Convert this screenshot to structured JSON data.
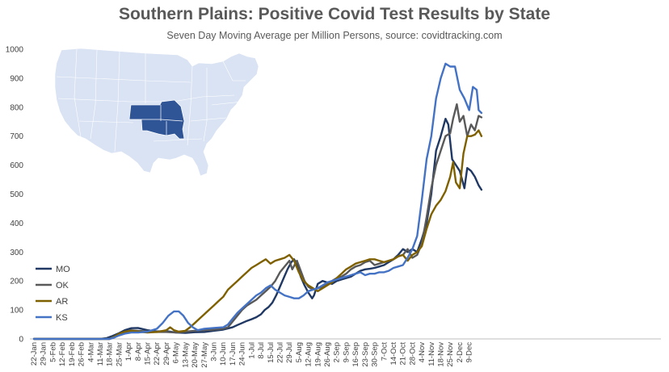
{
  "chart_data": {
    "type": "line",
    "title": "Southern Plains: Positive Covid Test Results by State",
    "subtitle": "Seven Day Moving  Average per Million Persons, source: covidtracking.com",
    "xlabel": "",
    "ylabel": "",
    "ylim": [
      0,
      1000
    ],
    "yticks": [
      0,
      100,
      200,
      300,
      400,
      500,
      600,
      700,
      800,
      900,
      1000
    ],
    "grid": false,
    "legend": "left",
    "x_tick_labels": [
      "22-Jan",
      "29-Jan",
      "5-Feb",
      "12-Feb",
      "19-Feb",
      "26-Feb",
      "4-Mar",
      "11-Mar",
      "18-Mar",
      "25-Mar",
      "1-Apr",
      "8-Apr",
      "15-Apr",
      "22-Apr",
      "29-Apr",
      "6-May",
      "13-May",
      "20-May",
      "27-May",
      "3-Jun",
      "10-Jun",
      "17-Jun",
      "24-Jun",
      "1-Jul",
      "8-Jul",
      "15-Jul",
      "22-Jul",
      "29-Jul",
      "5-Aug",
      "12-Aug",
      "19-Aug",
      "26-Aug",
      "2-Sep",
      "9-Sep",
      "16-Sep",
      "23-Sep",
      "30-Sep",
      "7-Oct",
      "14-Oct",
      "21-Oct",
      "28-Oct",
      "4-Nov",
      "11-Nov",
      "18-Nov",
      "25-Nov",
      "2-Dec",
      "9-Dec"
    ],
    "x_unit": "weeks since 22-Jan",
    "series": [
      {
        "name": "MO",
        "color": "#203864",
        "points": [
          [
            0,
            0
          ],
          [
            7,
            0
          ],
          [
            7.7,
            3
          ],
          [
            8.3,
            10
          ],
          [
            9,
            20
          ],
          [
            9.6,
            30
          ],
          [
            10.3,
            37
          ],
          [
            11,
            38
          ],
          [
            12,
            30
          ],
          [
            13,
            26
          ],
          [
            14,
            27
          ],
          [
            15,
            22
          ],
          [
            16,
            21
          ],
          [
            17,
            23
          ],
          [
            18,
            24
          ],
          [
            19,
            28
          ],
          [
            20,
            32
          ],
          [
            21,
            40
          ],
          [
            21.5,
            48
          ],
          [
            22,
            55
          ],
          [
            22.5,
            62
          ],
          [
            23,
            68
          ],
          [
            23.5,
            75
          ],
          [
            24,
            85
          ],
          [
            24.4,
            100
          ],
          [
            24.8,
            110
          ],
          [
            25.2,
            125
          ],
          [
            25.6,
            150
          ],
          [
            26,
            180
          ],
          [
            26.4,
            210
          ],
          [
            26.8,
            240
          ],
          [
            27.2,
            265
          ],
          [
            27.5,
            275
          ],
          [
            27.8,
            255
          ],
          [
            28.2,
            215
          ],
          [
            28.6,
            185
          ],
          [
            29,
            160
          ],
          [
            29.4,
            140
          ],
          [
            29.6,
            150
          ],
          [
            30,
            190
          ],
          [
            30.5,
            200
          ],
          [
            31,
            195
          ],
          [
            31.5,
            190
          ],
          [
            32,
            200
          ],
          [
            32.5,
            205
          ],
          [
            33,
            210
          ],
          [
            33.5,
            215
          ],
          [
            34,
            225
          ],
          [
            34.5,
            235
          ],
          [
            35,
            240
          ],
          [
            35.5,
            242
          ],
          [
            36,
            245
          ],
          [
            36.5,
            250
          ],
          [
            37,
            255
          ],
          [
            37.5,
            265
          ],
          [
            38,
            275
          ],
          [
            38.5,
            290
          ],
          [
            39,
            310
          ],
          [
            39.5,
            300
          ],
          [
            40,
            310
          ],
          [
            40.5,
            300
          ],
          [
            41,
            345
          ],
          [
            41.5,
            400
          ],
          [
            42,
            500
          ],
          [
            42.5,
            650
          ],
          [
            43,
            700
          ],
          [
            43.5,
            760
          ],
          [
            43.8,
            740
          ],
          [
            44.2,
            620
          ],
          [
            44.6,
            600
          ],
          [
            45,
            580
          ],
          [
            45.5,
            520
          ],
          [
            45.8,
            590
          ],
          [
            46.2,
            580
          ],
          [
            46.6,
            560
          ],
          [
            47,
            530
          ],
          [
            47.3,
            515
          ]
        ]
      },
      {
        "name": "OK",
        "color": "#595959",
        "points": [
          [
            0,
            0
          ],
          [
            8,
            0
          ],
          [
            8.5,
            5
          ],
          [
            9,
            15
          ],
          [
            9.6,
            22
          ],
          [
            10.2,
            30
          ],
          [
            11,
            28
          ],
          [
            12,
            26
          ],
          [
            13,
            24
          ],
          [
            14,
            24
          ],
          [
            15,
            22
          ],
          [
            16,
            25
          ],
          [
            17,
            28
          ],
          [
            18,
            30
          ],
          [
            19,
            32
          ],
          [
            20,
            35
          ],
          [
            20.5,
            40
          ],
          [
            21,
            60
          ],
          [
            21.5,
            80
          ],
          [
            22,
            100
          ],
          [
            22.5,
            115
          ],
          [
            23,
            125
          ],
          [
            23.5,
            135
          ],
          [
            24,
            150
          ],
          [
            24.5,
            165
          ],
          [
            25,
            180
          ],
          [
            25.5,
            200
          ],
          [
            26,
            230
          ],
          [
            26.5,
            250
          ],
          [
            27,
            270
          ],
          [
            27.3,
            240
          ],
          [
            27.8,
            270
          ],
          [
            28.2,
            235
          ],
          [
            28.6,
            200
          ],
          [
            29,
            180
          ],
          [
            29.5,
            170
          ],
          [
            30,
            175
          ],
          [
            30.5,
            180
          ],
          [
            31,
            190
          ],
          [
            31.5,
            200
          ],
          [
            32,
            210
          ],
          [
            32.5,
            215
          ],
          [
            33,
            225
          ],
          [
            33.5,
            240
          ],
          [
            34,
            250
          ],
          [
            34.5,
            255
          ],
          [
            35,
            265
          ],
          [
            35.5,
            270
          ],
          [
            36,
            255
          ],
          [
            36.5,
            260
          ],
          [
            37,
            265
          ],
          [
            37.5,
            270
          ],
          [
            38,
            275
          ],
          [
            38.5,
            285
          ],
          [
            39,
            290
          ],
          [
            39.5,
            310
          ],
          [
            40,
            280
          ],
          [
            40.5,
            290
          ],
          [
            41,
            330
          ],
          [
            41.5,
            420
          ],
          [
            42,
            520
          ],
          [
            42.5,
            600
          ],
          [
            43,
            650
          ],
          [
            43.5,
            700
          ],
          [
            44,
            710
          ],
          [
            44.3,
            760
          ],
          [
            44.7,
            810
          ],
          [
            45,
            750
          ],
          [
            45.4,
            770
          ],
          [
            45.8,
            700
          ],
          [
            46.2,
            740
          ],
          [
            46.6,
            720
          ],
          [
            47,
            770
          ],
          [
            47.3,
            765
          ]
        ]
      },
      {
        "name": "AR",
        "color": "#7F6000",
        "points": [
          [
            0,
            0
          ],
          [
            8,
            0
          ],
          [
            8.5,
            8
          ],
          [
            9,
            18
          ],
          [
            9.6,
            25
          ],
          [
            10.3,
            28
          ],
          [
            11,
            25
          ],
          [
            12,
            22
          ],
          [
            13,
            24
          ],
          [
            14,
            30
          ],
          [
            14.4,
            40
          ],
          [
            14.8,
            30
          ],
          [
            15.3,
            25
          ],
          [
            16,
            28
          ],
          [
            16.5,
            40
          ],
          [
            17,
            55
          ],
          [
            17.5,
            70
          ],
          [
            18,
            85
          ],
          [
            18.5,
            100
          ],
          [
            19,
            115
          ],
          [
            19.5,
            130
          ],
          [
            20,
            145
          ],
          [
            20.5,
            170
          ],
          [
            21,
            185
          ],
          [
            21.5,
            200
          ],
          [
            22,
            215
          ],
          [
            22.5,
            230
          ],
          [
            23,
            245
          ],
          [
            23.5,
            255
          ],
          [
            24,
            265
          ],
          [
            24.5,
            275
          ],
          [
            25,
            260
          ],
          [
            25.5,
            270
          ],
          [
            26,
            275
          ],
          [
            26.5,
            280
          ],
          [
            27,
            290
          ],
          [
            27.5,
            270
          ],
          [
            28,
            230
          ],
          [
            28.5,
            200
          ],
          [
            29,
            185
          ],
          [
            29.5,
            175
          ],
          [
            30,
            165
          ],
          [
            30.5,
            175
          ],
          [
            31,
            185
          ],
          [
            31.5,
            195
          ],
          [
            32,
            210
          ],
          [
            32.5,
            225
          ],
          [
            33,
            240
          ],
          [
            33.5,
            250
          ],
          [
            34,
            260
          ],
          [
            34.5,
            265
          ],
          [
            35,
            270
          ],
          [
            35.5,
            275
          ],
          [
            36,
            275
          ],
          [
            36.5,
            270
          ],
          [
            37,
            265
          ],
          [
            37.5,
            270
          ],
          [
            38,
            275
          ],
          [
            38.5,
            285
          ],
          [
            39,
            290
          ],
          [
            39.5,
            270
          ],
          [
            40,
            290
          ],
          [
            40.5,
            300
          ],
          [
            41,
            320
          ],
          [
            41.5,
            380
          ],
          [
            42,
            430
          ],
          [
            42.5,
            460
          ],
          [
            43,
            480
          ],
          [
            43.5,
            510
          ],
          [
            44,
            560
          ],
          [
            44.3,
            610
          ],
          [
            44.6,
            540
          ],
          [
            45,
            520
          ],
          [
            45.4,
            640
          ],
          [
            45.8,
            700
          ],
          [
            46.2,
            700
          ],
          [
            46.6,
            705
          ],
          [
            47,
            720
          ],
          [
            47.3,
            700
          ]
        ]
      },
      {
        "name": "KS",
        "color": "#4472C4",
        "points": [
          [
            0,
            0
          ],
          [
            8,
            0
          ],
          [
            8.5,
            5
          ],
          [
            9,
            12
          ],
          [
            9.6,
            18
          ],
          [
            10.3,
            22
          ],
          [
            11,
            22
          ],
          [
            12,
            25
          ],
          [
            13,
            35
          ],
          [
            13.6,
            55
          ],
          [
            14.2,
            80
          ],
          [
            14.8,
            95
          ],
          [
            15.3,
            95
          ],
          [
            15.8,
            80
          ],
          [
            16.3,
            55
          ],
          [
            16.8,
            40
          ],
          [
            17.3,
            30
          ],
          [
            18,
            35
          ],
          [
            19,
            38
          ],
          [
            20,
            40
          ],
          [
            20.5,
            50
          ],
          [
            21,
            70
          ],
          [
            21.5,
            90
          ],
          [
            22,
            105
          ],
          [
            22.5,
            120
          ],
          [
            23,
            135
          ],
          [
            23.5,
            150
          ],
          [
            24,
            160
          ],
          [
            24.5,
            175
          ],
          [
            25,
            185
          ],
          [
            25.5,
            170
          ],
          [
            26,
            160
          ],
          [
            26.5,
            150
          ],
          [
            27,
            145
          ],
          [
            27.5,
            140
          ],
          [
            28,
            140
          ],
          [
            28.5,
            150
          ],
          [
            29,
            165
          ],
          [
            29.5,
            170
          ],
          [
            30,
            175
          ],
          [
            30.5,
            185
          ],
          [
            31,
            195
          ],
          [
            31.5,
            200
          ],
          [
            32,
            205
          ],
          [
            32.5,
            210
          ],
          [
            33,
            215
          ],
          [
            33.5,
            220
          ],
          [
            34,
            225
          ],
          [
            34.5,
            230
          ],
          [
            35,
            220
          ],
          [
            35.5,
            225
          ],
          [
            36,
            225
          ],
          [
            36.5,
            230
          ],
          [
            37,
            230
          ],
          [
            37.5,
            235
          ],
          [
            38,
            245
          ],
          [
            38.5,
            250
          ],
          [
            39,
            255
          ],
          [
            39.5,
            280
          ],
          [
            40,
            310
          ],
          [
            40.5,
            355
          ],
          [
            41,
            480
          ],
          [
            41.5,
            620
          ],
          [
            42,
            700
          ],
          [
            42.5,
            830
          ],
          [
            43,
            900
          ],
          [
            43.5,
            950
          ],
          [
            44,
            940
          ],
          [
            44.5,
            940
          ],
          [
            45,
            860
          ],
          [
            45.5,
            830
          ],
          [
            46,
            790
          ],
          [
            46.4,
            870
          ],
          [
            46.8,
            860
          ],
          [
            47,
            790
          ],
          [
            47.3,
            780
          ]
        ]
      }
    ]
  },
  "inset_map": {
    "description_icon": "us-map-icon",
    "base_color": "#DAE3F3",
    "highlight_color": "#2F5597",
    "highlighted_states": [
      "KS",
      "MO",
      "OK",
      "AR"
    ]
  }
}
